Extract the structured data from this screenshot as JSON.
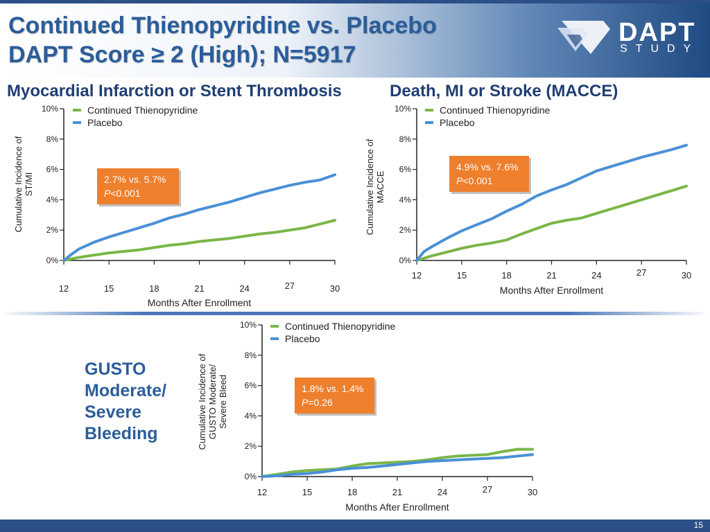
{
  "slide": {
    "title_line1": "Continued Thienopyridine vs. Placebo",
    "title_line2": "DAPT Score ≥ 2 (High); N=5917",
    "logo_word": "DAPT",
    "logo_sub": "STUDY",
    "gusto_label": [
      "GUSTO",
      "Moderate/",
      "Severe",
      "Bleeding"
    ],
    "page_number": "15"
  },
  "colors": {
    "continued": "#7ab648",
    "placebo": "#4a90d6",
    "callout": "#ee7f2d",
    "title": "#2b5d9a",
    "panel_title": "#1f3e73"
  },
  "chart_data": [
    {
      "type": "line",
      "title": "Myocardial Infarction or Stent Thrombosis",
      "xlabel": "Months After Enrollment",
      "ylabel": [
        "Cumulative Incidence of",
        "ST/MI"
      ],
      "xlim": [
        12,
        30
      ],
      "ylim": [
        0,
        10
      ],
      "xticks": [
        "12",
        "15",
        "18",
        "21",
        "24",
        "27",
        "30"
      ],
      "yticks": [
        "0%",
        "2%",
        "4%",
        "6%",
        "8%",
        "10%"
      ],
      "legend": [
        "Continued Thienopyridine",
        "Placebo"
      ],
      "annotation": {
        "line1": "2.7% vs. 5.7%",
        "p_label": "P",
        "p_value": "<0.001"
      },
      "series": [
        {
          "name": "Continued Thienopyridine",
          "x": [
            12,
            13,
            14,
            15,
            16,
            17,
            18,
            19,
            20,
            21,
            22,
            23,
            24,
            25,
            26,
            27,
            28,
            29,
            30
          ],
          "values": [
            0,
            0.2,
            0.35,
            0.5,
            0.6,
            0.7,
            0.85,
            1.0,
            1.1,
            1.25,
            1.35,
            1.45,
            1.6,
            1.75,
            1.85,
            2.0,
            2.15,
            2.4,
            2.65
          ]
        },
        {
          "name": "Placebo",
          "x": [
            12,
            12.5,
            13,
            14,
            15,
            16,
            17,
            18,
            19,
            20,
            21,
            22,
            23,
            24,
            25,
            26,
            27,
            28,
            29,
            30
          ],
          "values": [
            0,
            0.4,
            0.75,
            1.2,
            1.55,
            1.85,
            2.15,
            2.45,
            2.8,
            3.05,
            3.35,
            3.6,
            3.85,
            4.15,
            4.45,
            4.7,
            4.95,
            5.15,
            5.3,
            5.65
          ]
        }
      ]
    },
    {
      "type": "line",
      "title": "Death, MI or Stroke (MACCE)",
      "xlabel": "Months After Enrollment",
      "ylabel": [
        "Cumulative Incidence of",
        "MACCE"
      ],
      "xlim": [
        12,
        30
      ],
      "ylim": [
        0,
        10
      ],
      "xticks": [
        "12",
        "15",
        "18",
        "21",
        "24",
        "27",
        "30"
      ],
      "yticks": [
        "0%",
        "2%",
        "4%",
        "6%",
        "8%",
        "10%"
      ],
      "legend": [
        "Continued Thienopyridine",
        "Placebo"
      ],
      "annotation": {
        "line1": "4.9% vs. 7.6%",
        "p_label": "P",
        "p_value": "<0.001"
      },
      "series": [
        {
          "name": "Continued Thienopyridine",
          "x": [
            12,
            13,
            14,
            15,
            16,
            17,
            18,
            19,
            20,
            21,
            22,
            23,
            24,
            25,
            26,
            27,
            28,
            29,
            30
          ],
          "values": [
            0,
            0.3,
            0.55,
            0.8,
            1.0,
            1.15,
            1.35,
            1.75,
            2.1,
            2.45,
            2.65,
            2.8,
            3.1,
            3.4,
            3.7,
            4.0,
            4.3,
            4.6,
            4.9
          ]
        },
        {
          "name": "Placebo",
          "x": [
            12,
            12.5,
            13,
            14,
            15,
            16,
            17,
            18,
            19,
            20,
            21,
            22,
            23,
            24,
            25,
            26,
            27,
            28,
            29,
            30
          ],
          "values": [
            0,
            0.6,
            0.9,
            1.45,
            1.95,
            2.35,
            2.75,
            3.25,
            3.7,
            4.25,
            4.65,
            5.0,
            5.45,
            5.9,
            6.2,
            6.5,
            6.8,
            7.05,
            7.3,
            7.6
          ]
        }
      ]
    },
    {
      "type": "line",
      "title": "",
      "xlabel": "Months After Enrollment",
      "ylabel": [
        "Cumulative Incidence of",
        "GUSTO Moderate/",
        "Severe Bleed"
      ],
      "xlim": [
        12,
        30
      ],
      "ylim": [
        0,
        10
      ],
      "xticks": [
        "12",
        "15",
        "18",
        "21",
        "24",
        "27",
        "30"
      ],
      "yticks": [
        "0%",
        "2%",
        "4%",
        "6%",
        "8%",
        "10%"
      ],
      "legend": [
        "Continued Thienopyridine",
        "Placebo"
      ],
      "annotation": {
        "line1": "1.8% vs. 1.4%",
        "p_label": "P",
        "p_value": "=0.26"
      },
      "series": [
        {
          "name": "Continued Thienopyridine",
          "x": [
            12,
            13,
            14,
            15,
            16,
            17,
            18,
            19,
            20,
            21,
            22,
            23,
            24,
            25,
            26,
            27,
            28,
            29,
            30
          ],
          "values": [
            0,
            0.15,
            0.3,
            0.4,
            0.45,
            0.5,
            0.7,
            0.85,
            0.9,
            0.95,
            1.0,
            1.1,
            1.25,
            1.35,
            1.4,
            1.45,
            1.65,
            1.8,
            1.8
          ]
        },
        {
          "name": "Placebo",
          "x": [
            12,
            13,
            14,
            15,
            16,
            17,
            18,
            19,
            20,
            21,
            22,
            23,
            24,
            25,
            26,
            27,
            28,
            29,
            30
          ],
          "values": [
            0,
            0.05,
            0.15,
            0.2,
            0.3,
            0.45,
            0.55,
            0.6,
            0.7,
            0.8,
            0.9,
            1.0,
            1.05,
            1.1,
            1.15,
            1.2,
            1.25,
            1.35,
            1.45
          ]
        }
      ]
    }
  ]
}
